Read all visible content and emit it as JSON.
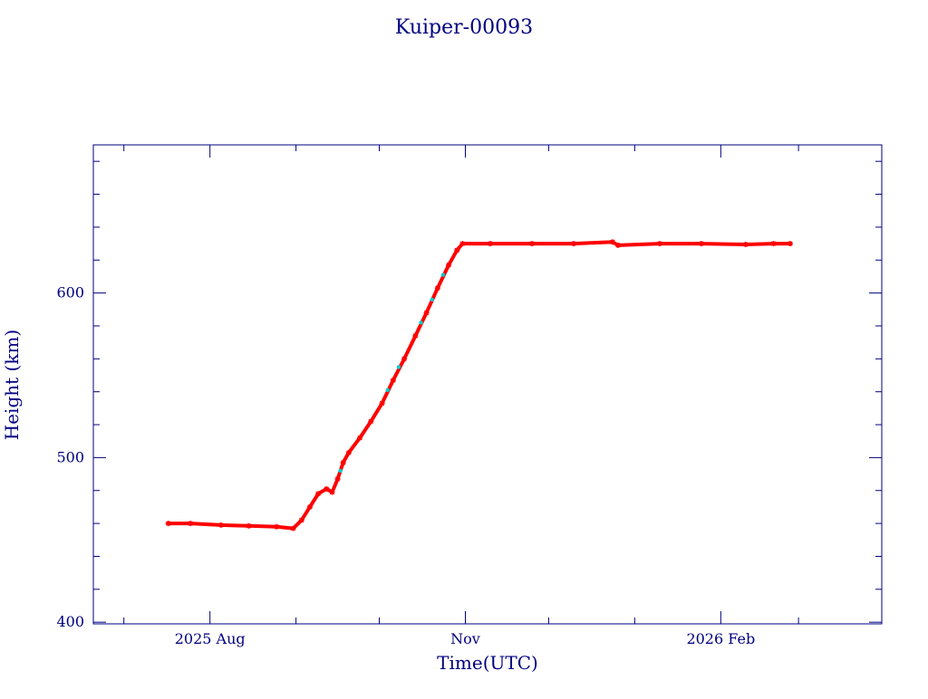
{
  "page": {
    "title": "Kuiper-00093"
  },
  "chart_data": {
    "type": "scatter",
    "title": "Kuiper-00093",
    "xlabel": "Time(UTC)",
    "ylabel": "Height (km)",
    "x_axis": {
      "type": "date",
      "range": [
        "2025-06-20",
        "2026-03-31"
      ],
      "major_ticks": [
        {
          "date": "2025-08-01",
          "label": "2025 Aug"
        },
        {
          "date": "2025-11-01",
          "label": "Nov"
        },
        {
          "date": "2026-02-01",
          "label": "2026 Feb"
        }
      ],
      "minor_ticks": [
        "2025-07-01",
        "2025-09-01",
        "2025-10-01",
        "2025-12-01",
        "2026-01-01",
        "2026-03-01"
      ]
    },
    "y_axis": {
      "range": [
        399,
        690
      ],
      "major_ticks": [
        400,
        500,
        600
      ],
      "minor_step": 20
    },
    "grid": false,
    "colors": {
      "axis": "#000080",
      "primary_marker": "#ff0000",
      "secondary_marker": "#00cccc"
    },
    "series": [
      {
        "marker": "star",
        "color": "#ff0000",
        "points": [
          {
            "x": "2025-07-17",
            "y": 460
          },
          {
            "x": "2025-07-25",
            "y": 460
          },
          {
            "x": "2025-08-05",
            "y": 459
          },
          {
            "x": "2025-08-15",
            "y": 458.5
          },
          {
            "x": "2025-08-25",
            "y": 458
          },
          {
            "x": "2025-08-31",
            "y": 457
          },
          {
            "x": "2025-09-03",
            "y": 462
          },
          {
            "x": "2025-09-06",
            "y": 470
          },
          {
            "x": "2025-09-09",
            "y": 478
          },
          {
            "x": "2025-09-12",
            "y": 481
          },
          {
            "x": "2025-09-14",
            "y": 479
          },
          {
            "x": "2025-09-16",
            "y": 487
          },
          {
            "x": "2025-09-18",
            "y": 497
          },
          {
            "x": "2025-09-20",
            "y": 503
          },
          {
            "x": "2025-09-24",
            "y": 512
          },
          {
            "x": "2025-09-28",
            "y": 522
          },
          {
            "x": "2025-10-02",
            "y": 533
          },
          {
            "x": "2025-10-06",
            "y": 547
          },
          {
            "x": "2025-10-10",
            "y": 560
          },
          {
            "x": "2025-10-14",
            "y": 574
          },
          {
            "x": "2025-10-18",
            "y": 588
          },
          {
            "x": "2025-10-22",
            "y": 603
          },
          {
            "x": "2025-10-26",
            "y": 617
          },
          {
            "x": "2025-10-29",
            "y": 626
          },
          {
            "x": "2025-10-31",
            "y": 630
          },
          {
            "x": "2025-11-10",
            "y": 630
          },
          {
            "x": "2025-11-25",
            "y": 630
          },
          {
            "x": "2025-12-10",
            "y": 630
          },
          {
            "x": "2025-12-24",
            "y": 631
          },
          {
            "x": "2025-12-26",
            "y": 629
          },
          {
            "x": "2026-01-10",
            "y": 630
          },
          {
            "x": "2026-01-25",
            "y": 630
          },
          {
            "x": "2026-02-10",
            "y": 629.5
          },
          {
            "x": "2026-02-20",
            "y": 630
          },
          {
            "x": "2026-02-26",
            "y": 630
          }
        ]
      },
      {
        "marker": "dot",
        "color": "#00cccc",
        "points": [
          {
            "x": "2025-09-17",
            "y": 492
          },
          {
            "x": "2025-10-04",
            "y": 541
          },
          {
            "x": "2025-10-08",
            "y": 555
          },
          {
            "x": "2025-10-16",
            "y": 582
          },
          {
            "x": "2025-10-20",
            "y": 596
          },
          {
            "x": "2025-10-24",
            "y": 611
          }
        ]
      }
    ]
  }
}
